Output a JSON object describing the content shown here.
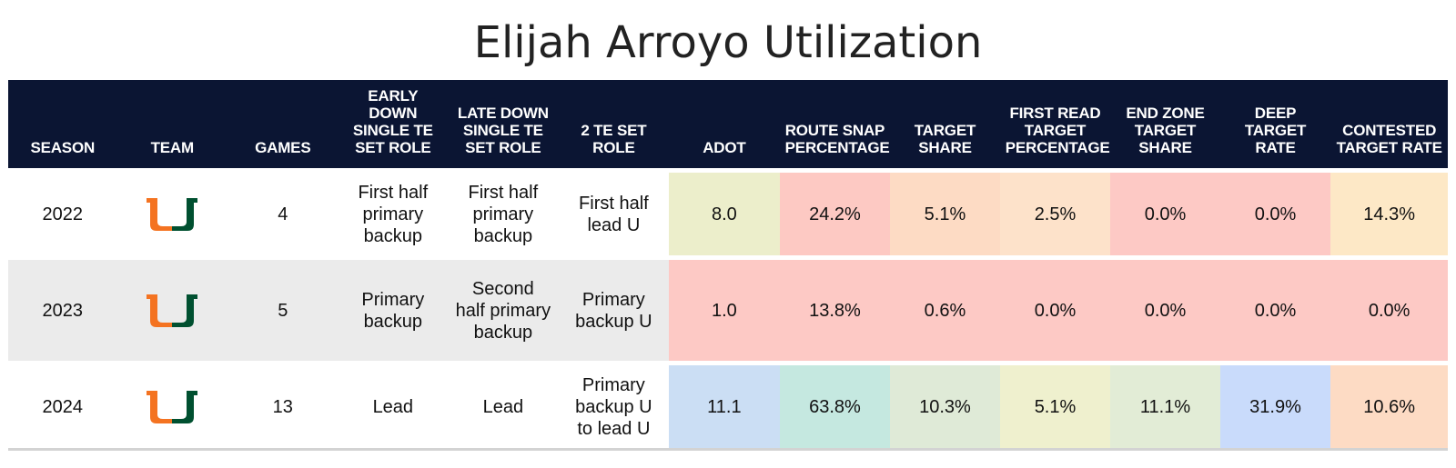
{
  "title": "Elijah Arroyo Utilization",
  "colors": {
    "header_bg": "#0b1533",
    "logo_orange": "#f47321",
    "logo_green": "#005030",
    "row_alt_bg": "#ebebeb"
  },
  "chart_data": {
    "type": "table",
    "title": "Elijah Arroyo Utilization",
    "columns": [
      "SEASON",
      "TEAM",
      "GAMES",
      "EARLY DOWN SINGLE TE SET ROLE",
      "LATE DOWN SINGLE TE SET ROLE",
      "2 TE SET ROLE",
      "ADOT",
      "ROUTE SNAP PERCENTAGE",
      "TARGET SHARE",
      "FIRST READ TARGET PERCENTAGE",
      "END ZONE TARGET SHARE",
      "DEEP TARGET RATE",
      "CONTESTED TARGET RATE"
    ],
    "team_logo_icon": "miami-u-logo-icon",
    "rows": [
      {
        "season": "2022",
        "games": "4",
        "early_down": "First half primary backup",
        "late_down": "First half primary backup",
        "two_te": "First half lead U",
        "adot": "8.0",
        "route_snap": "24.2%",
        "target_share": "5.1%",
        "first_read": "2.5%",
        "end_zone": "0.0%",
        "deep": "0.0%",
        "contested": "14.3%",
        "cell_colors": [
          "#eceecb",
          "#fdc9c3",
          "#fddbc4",
          "#fde2ca",
          "#fdc9c5",
          "#fdc9c5",
          "#fde8c6"
        ]
      },
      {
        "season": "2023",
        "games": "5",
        "early_down": "Primary backup",
        "late_down": "Second half primary backup",
        "two_te": "Primary backup U",
        "adot": "1.0",
        "route_snap": "13.8%",
        "target_share": "0.6%",
        "first_read": "0.0%",
        "end_zone": "0.0%",
        "deep": "0.0%",
        "contested": "0.0%",
        "cell_colors": [
          "#fdc9c5",
          "#fdc9c5",
          "#fdc9c5",
          "#fdc9c5",
          "#fdc9c5",
          "#fdc9c5",
          "#fdc9c5"
        ]
      },
      {
        "season": "2024",
        "games": "13",
        "early_down": "Lead",
        "late_down": "Lead",
        "two_te": "Primary backup U to lead U",
        "adot": "11.1",
        "route_snap": "63.8%",
        "target_share": "10.3%",
        "first_read": "5.1%",
        "end_zone": "11.1%",
        "deep": "31.9%",
        "contested": "10.6%",
        "cell_colors": [
          "#cbdef4",
          "#c5e8e0",
          "#dfead7",
          "#eff0ce",
          "#e2ecd6",
          "#c9dbfb",
          "#fddbc4"
        ]
      }
    ]
  }
}
